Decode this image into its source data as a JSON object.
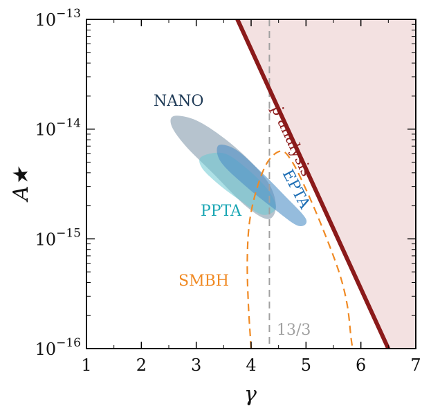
{
  "chart_data": {
    "type": "scatter",
    "xlabel": "γ",
    "ylabel": "A★",
    "xlim": [
      1,
      7
    ],
    "ylim_log10": [
      -16,
      -13
    ],
    "y_scale": "log",
    "x_ticks": [
      1,
      2,
      3,
      4,
      5,
      6,
      7
    ],
    "x_tick_labels": [
      "1",
      "2",
      "3",
      "4",
      "5",
      "6",
      "7"
    ],
    "y_ticks_log10": [
      -16,
      -15,
      -14,
      -13
    ],
    "y_tick_labels": [
      {
        "base": "10",
        "exp": "−16"
      },
      {
        "base": "10",
        "exp": "−15"
      },
      {
        "base": "10",
        "exp": "−14"
      },
      {
        "base": "10",
        "exp": "−13"
      }
    ],
    "grid": false,
    "colors": {
      "nano": "#8fa3b4",
      "nano_label": "#1f3b57",
      "ppta": "#6cc9d1",
      "ppta_label": "#1aa6b4",
      "epta": "#4e8fc7",
      "epta_label": "#1f6fb5",
      "smbh": "#f08a24",
      "pdot": "#8b1a1a",
      "excluded_fill": "#f3e1e1",
      "vline": "#a0a0a0"
    },
    "series": [
      {
        "name": "NANO",
        "kind": "region",
        "polygon": [
          [
            2.6,
            -13.88
          ],
          [
            3.0,
            -13.92
          ],
          [
            3.5,
            -14.08
          ],
          [
            4.0,
            -14.3
          ],
          [
            4.35,
            -14.52
          ],
          [
            4.45,
            -14.72
          ],
          [
            4.3,
            -14.82
          ],
          [
            3.9,
            -14.7
          ],
          [
            3.3,
            -14.4
          ],
          [
            2.8,
            -14.15
          ],
          [
            2.55,
            -13.97
          ]
        ]
      },
      {
        "name": "PPTA",
        "kind": "region",
        "polygon": [
          [
            3.1,
            -14.25
          ],
          [
            3.5,
            -14.22
          ],
          [
            3.9,
            -14.35
          ],
          [
            4.3,
            -14.55
          ],
          [
            4.45,
            -14.72
          ],
          [
            4.2,
            -14.78
          ],
          [
            3.8,
            -14.65
          ],
          [
            3.4,
            -14.5
          ],
          [
            3.1,
            -14.35
          ]
        ]
      },
      {
        "name": "EPTA",
        "kind": "region",
        "polygon": [
          [
            3.4,
            -14.15
          ],
          [
            3.7,
            -14.18
          ],
          [
            4.1,
            -14.35
          ],
          [
            4.6,
            -14.6
          ],
          [
            5.0,
            -14.82
          ],
          [
            4.85,
            -14.88
          ],
          [
            4.4,
            -14.72
          ],
          [
            3.9,
            -14.52
          ],
          [
            3.45,
            -14.3
          ]
        ]
      },
      {
        "name": "SMBH",
        "kind": "dashed-contour",
        "points": [
          [
            4.0,
            -16.0
          ],
          [
            3.95,
            -15.6
          ],
          [
            3.93,
            -15.2
          ],
          [
            3.97,
            -14.85
          ],
          [
            4.1,
            -14.55
          ],
          [
            4.3,
            -14.3
          ],
          [
            4.55,
            -14.2
          ],
          [
            4.75,
            -14.3
          ],
          [
            5.0,
            -14.55
          ],
          [
            5.3,
            -14.9
          ],
          [
            5.6,
            -15.3
          ],
          [
            5.75,
            -15.6
          ],
          [
            5.82,
            -15.9
          ],
          [
            5.85,
            -16.0
          ]
        ]
      },
      {
        "name": "ṗ analysis",
        "kind": "bound-line",
        "points": [
          [
            3.75,
            -13.0
          ],
          [
            6.5,
            -16.0
          ]
        ]
      }
    ],
    "vline": {
      "x": 4.333,
      "label": "13/3"
    },
    "annotations": {
      "nano": "NANO",
      "ppta": "PPTA",
      "epta": "EPTA",
      "smbh": "SMBH",
      "pdot": "ṗ analysis",
      "vline": "13/3"
    }
  }
}
